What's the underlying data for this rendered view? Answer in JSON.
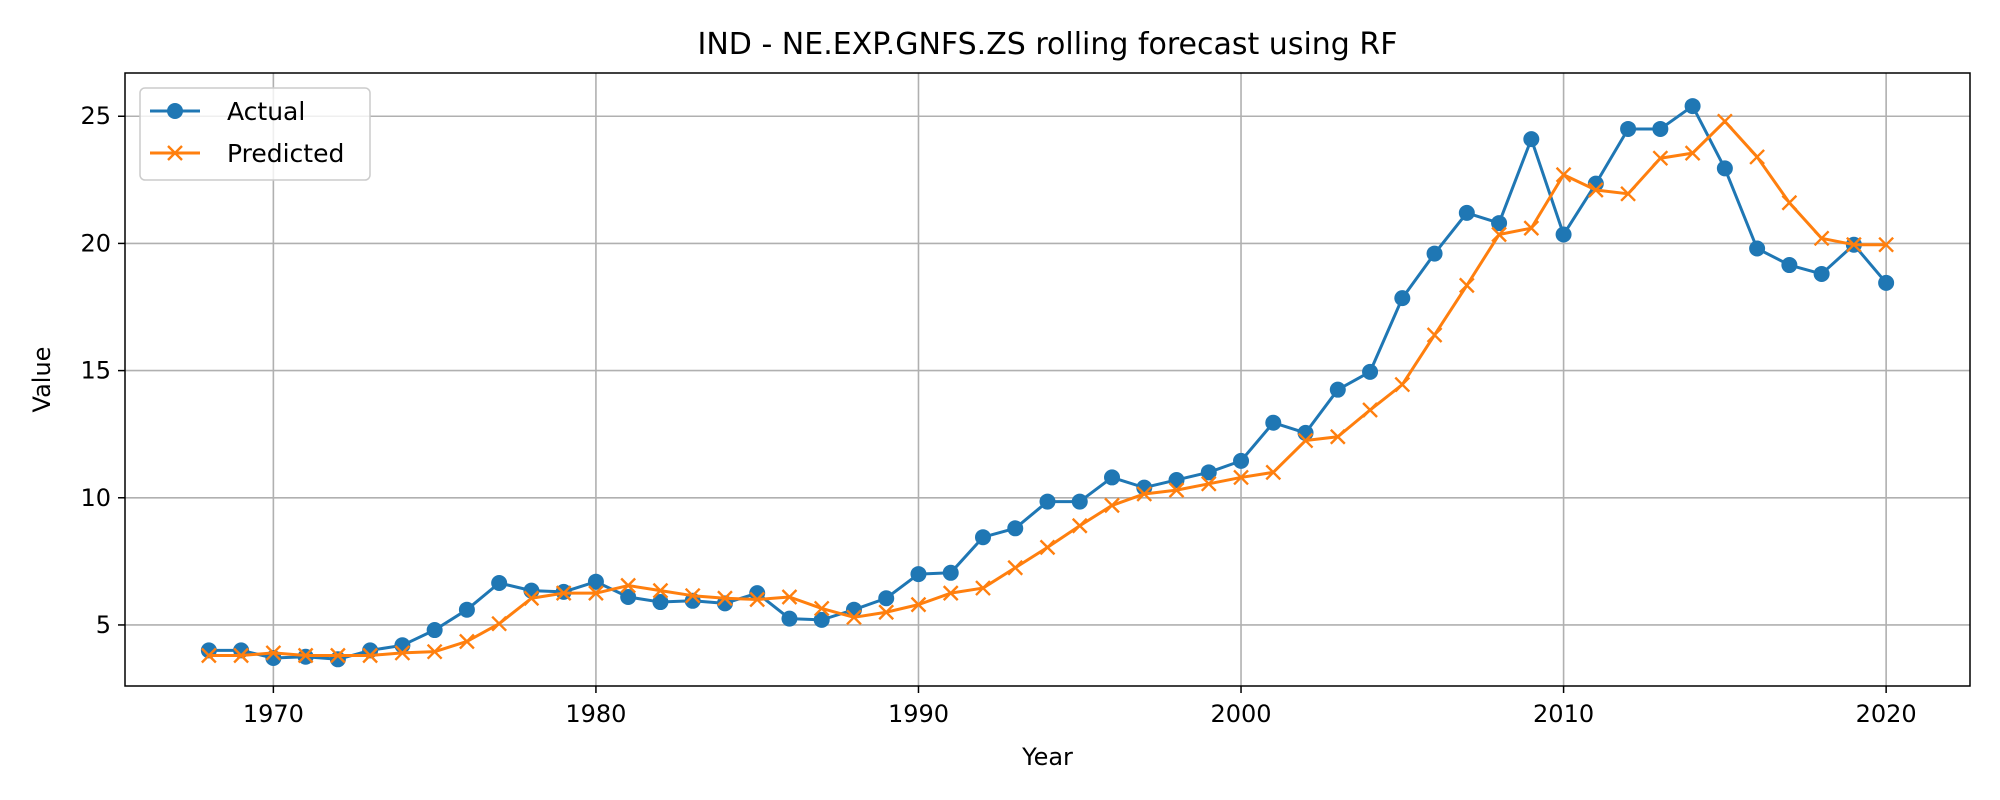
{
  "chart_data": {
    "type": "line",
    "title": "IND - NE.EXP.GNFS.ZS rolling forecast using RF",
    "xlabel": "Year",
    "ylabel": "Value",
    "xlim": [
      1965.4,
      2022.6
    ],
    "ylim": [
      2.6,
      26.7
    ],
    "xticks": [
      1970,
      1980,
      1990,
      2000,
      2010,
      2020
    ],
    "yticks": [
      5,
      10,
      15,
      20,
      25
    ],
    "grid": true,
    "legend_position": "top-left",
    "x": [
      1968,
      1969,
      1970,
      1971,
      1972,
      1973,
      1974,
      1975,
      1976,
      1977,
      1978,
      1979,
      1980,
      1981,
      1982,
      1983,
      1984,
      1985,
      1986,
      1987,
      1988,
      1989,
      1990,
      1991,
      1992,
      1993,
      1994,
      1995,
      1996,
      1997,
      1998,
      1999,
      2000,
      2001,
      2002,
      2003,
      2004,
      2005,
      2006,
      2007,
      2008,
      2009,
      2010,
      2011,
      2012,
      2013,
      2014,
      2015,
      2016,
      2017,
      2018,
      2019,
      2020
    ],
    "series": [
      {
        "name": "Actual",
        "color": "#1f77b4",
        "marker": "circle",
        "values": [
          4.0,
          4.0,
          3.7,
          3.75,
          3.65,
          4.0,
          4.2,
          4.8,
          5.6,
          6.65,
          6.35,
          6.3,
          6.7,
          6.1,
          5.9,
          5.95,
          5.85,
          6.25,
          5.25,
          5.2,
          5.6,
          6.05,
          7.0,
          7.05,
          8.45,
          8.8,
          9.85,
          9.85,
          10.8,
          10.4,
          10.7,
          11.0,
          11.45,
          12.95,
          12.55,
          14.25,
          14.95,
          17.85,
          19.6,
          21.2,
          20.8,
          24.1,
          20.35,
          22.35,
          24.5,
          24.5,
          25.4,
          22.95,
          19.8,
          19.15,
          18.8,
          19.95,
          18.45
        ]
      },
      {
        "name": "Predicted",
        "color": "#ff7f0e",
        "marker": "x",
        "values": [
          3.8,
          3.8,
          3.9,
          3.8,
          3.8,
          3.8,
          3.9,
          3.95,
          4.35,
          5.05,
          6.05,
          6.25,
          6.25,
          6.55,
          6.35,
          6.15,
          6.05,
          6.0,
          6.1,
          5.65,
          5.3,
          5.5,
          5.8,
          6.25,
          6.45,
          7.25,
          8.05,
          8.9,
          9.7,
          10.15,
          10.3,
          10.55,
          10.8,
          11.0,
          12.25,
          12.4,
          13.45,
          14.45,
          16.4,
          18.35,
          20.35,
          20.6,
          22.7,
          22.1,
          21.95,
          23.35,
          23.55,
          24.8,
          23.4,
          21.6,
          20.2,
          19.95,
          19.95
        ]
      }
    ]
  }
}
